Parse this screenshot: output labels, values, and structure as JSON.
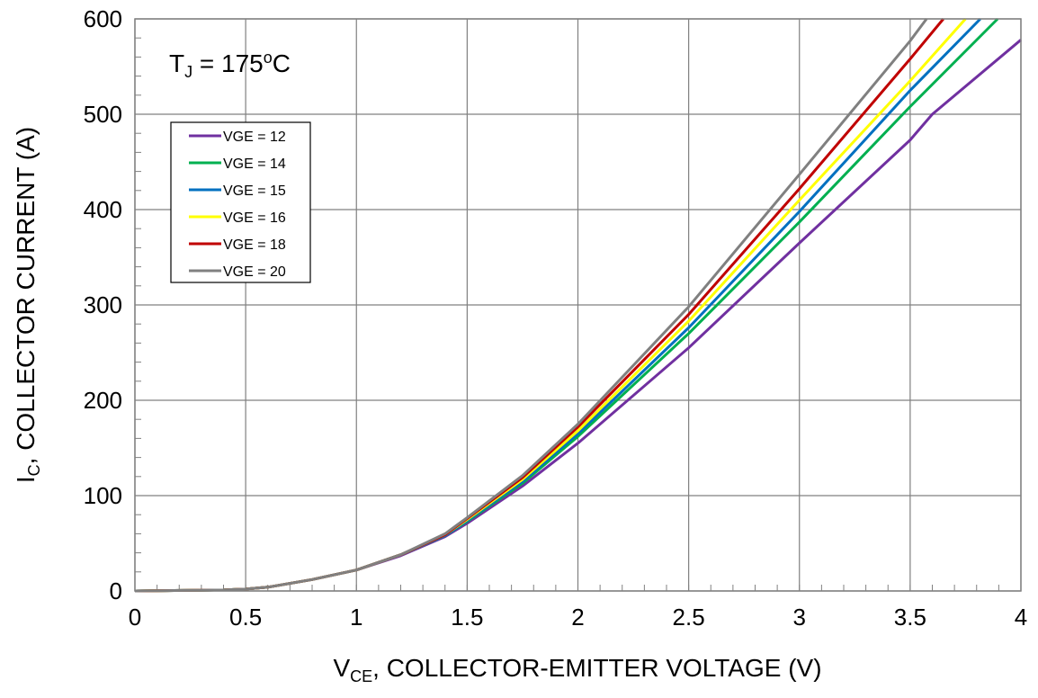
{
  "chart_data": {
    "type": "line",
    "annotation": {
      "main": "T",
      "sub": "J",
      "rest": " = 175",
      "sup": "o",
      "unit": "C"
    },
    "xlabel": {
      "main": "V",
      "sub": "CE",
      "rest": ", COLLECTOR-EMITTER VOLTAGE (V)"
    },
    "ylabel": {
      "main": "I",
      "sub": "C",
      "rest": ", COLLECTOR CURRENT (A)"
    },
    "xlim": [
      0,
      4
    ],
    "ylim": [
      0,
      600
    ],
    "xticks": [
      "0",
      "0.5",
      "1",
      "1.5",
      "2",
      "2.5",
      "3",
      "3.5",
      "4"
    ],
    "yticks": [
      "0",
      "100",
      "200",
      "300",
      "400",
      "500",
      "600"
    ],
    "grid": true,
    "legend_position": "upper-left",
    "series": [
      {
        "name": "VGE = 12",
        "color": "#7030a0",
        "x": [
          0,
          0.4,
          0.5,
          0.6,
          0.8,
          1.0,
          1.2,
          1.4,
          1.5,
          1.75,
          2.0,
          2.5,
          3.0,
          3.5,
          3.6,
          4.0
        ],
        "y": [
          0,
          1,
          2,
          4,
          12,
          22,
          37,
          57,
          71,
          110,
          155,
          255,
          365,
          473,
          500,
          578
        ]
      },
      {
        "name": "VGE = 14",
        "color": "#00b050",
        "x": [
          0,
          0.4,
          0.5,
          0.6,
          0.8,
          1.0,
          1.2,
          1.4,
          1.5,
          1.75,
          2.0,
          2.5,
          3.0,
          3.5,
          3.895
        ],
        "y": [
          0,
          1,
          2,
          4,
          12,
          22,
          38,
          58,
          73,
          113,
          162,
          270,
          387,
          508,
          600
        ]
      },
      {
        "name": "VGE = 15",
        "color": "#0070c0",
        "x": [
          0,
          0.4,
          0.5,
          0.6,
          0.8,
          1.0,
          1.2,
          1.4,
          1.5,
          1.75,
          2.0,
          2.5,
          3.0,
          3.5,
          3.817
        ],
        "y": [
          0,
          1,
          2,
          4,
          12,
          22,
          38,
          58,
          74,
          115,
          165,
          276,
          398,
          525,
          600
        ]
      },
      {
        "name": "VGE = 16",
        "color": "#ffff00",
        "x": [
          0,
          0.4,
          0.5,
          0.6,
          0.8,
          1.0,
          1.2,
          1.4,
          1.5,
          1.75,
          2.0,
          2.5,
          3.0,
          3.5,
          3.75
        ],
        "y": [
          0,
          1,
          2,
          4,
          12,
          22,
          38,
          59,
          75,
          117,
          168,
          283,
          410,
          535,
          600
        ]
      },
      {
        "name": "VGE = 18",
        "color": "#c00000",
        "x": [
          0,
          0.4,
          0.5,
          0.6,
          0.8,
          1.0,
          1.2,
          1.4,
          1.5,
          1.75,
          2.0,
          2.5,
          3.0,
          3.5,
          3.65
        ],
        "y": [
          0,
          1,
          2,
          4,
          12,
          22,
          38,
          59,
          76,
          119,
          172,
          290,
          422,
          558,
          600
        ]
      },
      {
        "name": "VGE = 20",
        "color": "#808080",
        "x": [
          0,
          0.4,
          0.5,
          0.6,
          0.8,
          1.0,
          1.2,
          1.4,
          1.5,
          1.75,
          2.0,
          2.5,
          3.0,
          3.5,
          3.574
        ],
        "y": [
          0,
          1,
          2,
          4,
          12,
          22,
          38,
          60,
          77,
          121,
          175,
          298,
          437,
          577,
          600
        ]
      }
    ]
  }
}
